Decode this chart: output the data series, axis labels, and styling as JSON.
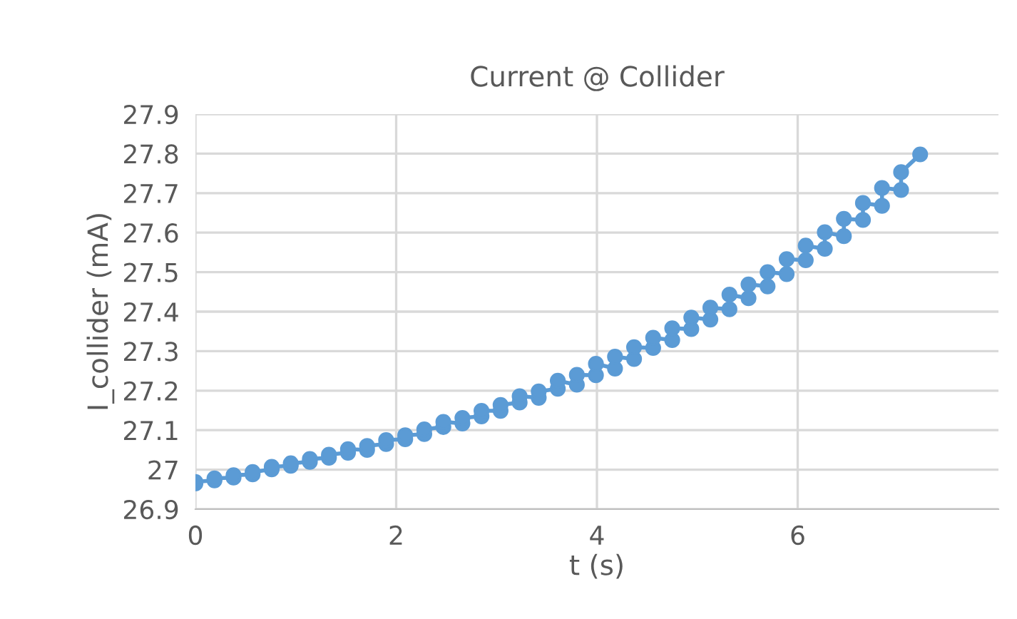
{
  "chart_data": {
    "type": "line",
    "title": "Current @ Collider",
    "xlabel": "t (s)",
    "ylabel": "I_collider (mA)",
    "series": [
      {
        "color": "#5b9bd5",
        "x": [
          0,
          0,
          0.19,
          0.19,
          0.38,
          0.38,
          0.57,
          0.57,
          0.76,
          0.76,
          0.95,
          0.95,
          1.14,
          1.14,
          1.33,
          1.33,
          1.52,
          1.52,
          1.71,
          1.71,
          1.9,
          1.9,
          2.09,
          2.09,
          2.28,
          2.28,
          2.47,
          2.47,
          2.66,
          2.66,
          2.85,
          2.85,
          3.04,
          3.04,
          3.23,
          3.23,
          3.42,
          3.42,
          3.61,
          3.61,
          3.8,
          3.8,
          3.99,
          3.99,
          4.18,
          4.18,
          4.37,
          4.37,
          4.56,
          4.56,
          4.75,
          4.75,
          4.94,
          4.94,
          5.13,
          5.13,
          5.32,
          5.32,
          5.51,
          5.51,
          5.7,
          5.7,
          5.89,
          5.89,
          6.08,
          6.08,
          6.27,
          6.27,
          6.46,
          6.46,
          6.65,
          6.65,
          6.84,
          6.84,
          7.03,
          7.03,
          7.22
        ],
        "values": [
          26.965,
          26.969,
          26.973,
          26.978,
          26.98,
          26.986,
          26.988,
          26.994,
          27.001,
          27.007,
          27.01,
          27.016,
          27.02,
          27.027,
          27.03,
          27.038,
          27.043,
          27.052,
          27.05,
          27.06,
          27.065,
          27.075,
          27.077,
          27.087,
          27.09,
          27.102,
          27.108,
          27.121,
          27.117,
          27.131,
          27.135,
          27.149,
          27.149,
          27.164,
          27.17,
          27.186,
          27.182,
          27.198,
          27.205,
          27.225,
          27.215,
          27.24,
          27.239,
          27.268,
          27.256,
          27.286,
          27.28,
          27.31,
          27.308,
          27.334,
          27.328,
          27.358,
          27.356,
          27.385,
          27.38,
          27.41,
          27.406,
          27.443,
          27.434,
          27.469,
          27.464,
          27.5,
          27.495,
          27.533,
          27.53,
          27.567,
          27.559,
          27.601,
          27.591,
          27.635,
          27.632,
          27.675,
          27.668,
          27.713,
          27.708,
          27.753,
          27.798
        ]
      }
    ],
    "xlim": [
      0,
      8
    ],
    "xticks": [
      0,
      2,
      4,
      6
    ],
    "ylim": [
      26.9,
      27.9
    ],
    "yticks": [
      {
        "value": 26.9,
        "label": "26.9"
      },
      {
        "value": 27,
        "label": "27"
      },
      {
        "value": 27.1,
        "label": "27.1"
      },
      {
        "value": 27.2,
        "label": "27.2"
      },
      {
        "value": 27.3,
        "label": "27.3"
      },
      {
        "value": 27.4,
        "label": "27.4"
      },
      {
        "value": 27.5,
        "label": "27.5"
      },
      {
        "value": 27.6,
        "label": "27.6"
      },
      {
        "value": 27.7,
        "label": "27.7"
      },
      {
        "value": 27.8,
        "label": "27.8"
      },
      {
        "value": 27.9,
        "label": "27.9"
      }
    ],
    "grid": true,
    "marker": "circle",
    "line_style": "solid",
    "legend": false
  }
}
